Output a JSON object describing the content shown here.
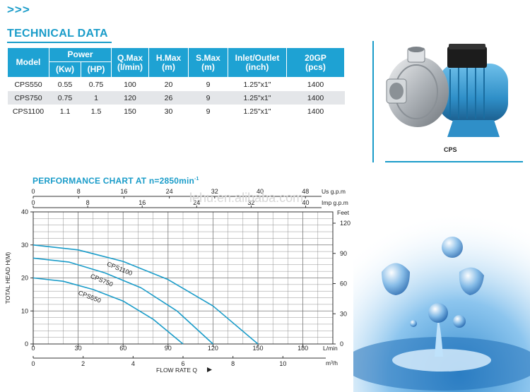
{
  "header": {
    "chevrons": ">>>",
    "section_title": "TECHNICAL DATA"
  },
  "table": {
    "head": {
      "model": "Model",
      "power": "Power",
      "kw": "(Kw)",
      "hp": "(HP)",
      "qmax": "Q.Max\n(l/min)",
      "hmax": "H.Max\n(m)",
      "smax": "S.Max\n(m)",
      "inlet": "Inlet/Outlet\n(inch)",
      "gp": "20GP\n(pcs)"
    },
    "rows": [
      {
        "model": "CPS550",
        "kw": "0.55",
        "hp": "0.75",
        "q": "100",
        "h": "20",
        "s": "9",
        "io": "1.25\"x1\"",
        "gp": "1400"
      },
      {
        "model": "CPS750",
        "kw": "0.75",
        "hp": "1",
        "q": "120",
        "h": "26",
        "s": "9",
        "io": "1.25\"x1\"",
        "gp": "1400"
      },
      {
        "model": "CPS1100",
        "kw": "1.1",
        "hp": "1.5",
        "q": "150",
        "h": "30",
        "s": "9",
        "io": "1.25\"x1\"",
        "gp": "1400"
      }
    ]
  },
  "product": {
    "caption": "CPS",
    "colors": {
      "motor": "#2f8fc8",
      "housing": "#c9cdd1",
      "box": "#1c1c1c"
    }
  },
  "chart": {
    "title": "PERFORMANCE CHART AT n=2850min",
    "title_sup": "-1",
    "watermark": "lehu.en.alibaba.com"
  },
  "chart_data": {
    "type": "line",
    "xlabel": "FLOW RATE Q",
    "ylabel": "TOTAL HEAD H(M)",
    "xlim": [
      0,
      200
    ],
    "ylim": [
      0,
      40
    ],
    "x_unit": "L/min",
    "x_ticks": [
      0,
      30,
      60,
      90,
      120,
      150,
      180
    ],
    "y_ticks": [
      0,
      10,
      20,
      30,
      40
    ],
    "x2_unit": "m³/h",
    "x2_ticks": [
      0,
      2,
      4,
      6,
      8,
      10
    ],
    "top_us_unit": "Us g.p.m",
    "top_us_ticks": [
      0,
      8,
      16,
      24,
      32,
      40,
      48
    ],
    "top_imp_unit": "Imp g.p.m",
    "top_imp_ticks": [
      0,
      8,
      16,
      24,
      32,
      40
    ],
    "right_unit": "Feet",
    "right_ticks": [
      0,
      30,
      60,
      90,
      120
    ],
    "series": [
      {
        "name": "CPS1100",
        "x": [
          0,
          30,
          60,
          90,
          120,
          150
        ],
        "y": [
          30,
          28.5,
          25,
          19.5,
          11.5,
          0
        ]
      },
      {
        "name": "CPS750",
        "x": [
          0,
          24,
          48,
          72,
          96,
          120
        ],
        "y": [
          26,
          24.8,
          21.5,
          17,
          10,
          0
        ]
      },
      {
        "name": "CPS550",
        "x": [
          0,
          20,
          40,
          60,
          80,
          100
        ],
        "y": [
          20,
          19,
          16.5,
          13,
          7.5,
          0
        ]
      }
    ],
    "grid": true,
    "colors": {
      "curve": "#1a9cc9",
      "frame": "#333333",
      "grid": "#777777"
    }
  }
}
